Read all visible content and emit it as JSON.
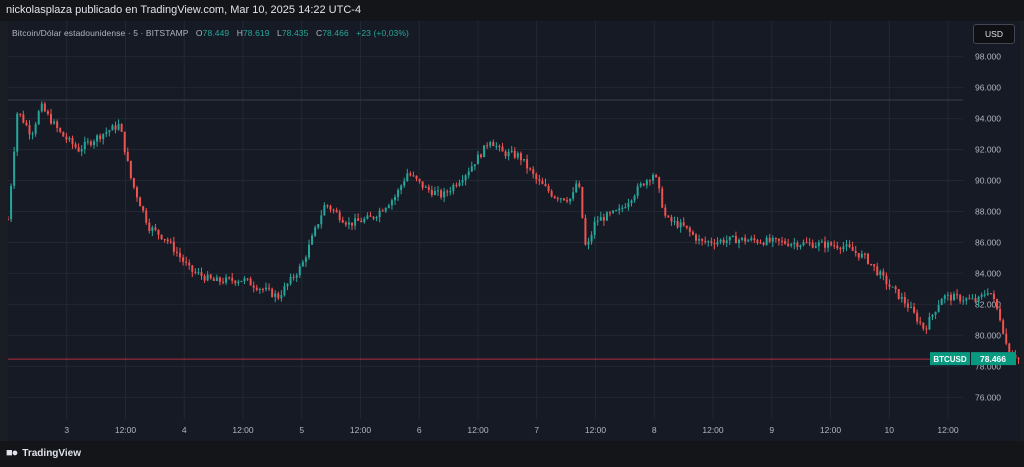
{
  "header": {
    "publish_line": "nickolasplaza publicado en TradingView.com, Mar 10, 2025 14:22 UTC-4"
  },
  "legend": {
    "symbol_title": "Bitcoin/Dólar estadounidense · 5 · BITSTAMP",
    "open_key": "O",
    "open_value": "78.449",
    "high_key": "H",
    "high_value": "78.619",
    "low_key": "L",
    "low_value": "78.435",
    "close_key": "C",
    "close_value": "78.466",
    "change": "+23 (+0,03%)"
  },
  "currency_button": "USD",
  "price_tag": {
    "symbol": "BTCUSD",
    "value": "78.466"
  },
  "footer": {
    "brand": "TradingView"
  },
  "colors": {
    "up": "#26a69a",
    "down": "#ef5350",
    "grid": "#232733",
    "price_line": "#f23645",
    "tag": "#089981"
  },
  "chart_data": {
    "type": "candlestick",
    "symbol": "BTCUSD",
    "interval": "5",
    "exchange": "BITSTAMP",
    "y_ticks": [
      "76.000",
      "78.000",
      "80.000",
      "82.000",
      "84.000",
      "86.000",
      "88.000",
      "90.000",
      "92.000",
      "94.000",
      "96.000",
      "98.000"
    ],
    "ylim": [
      74600,
      100300
    ],
    "x_ticks": [
      "3",
      "12:00",
      "4",
      "12:00",
      "5",
      "12:00",
      "6",
      "12:00",
      "7",
      "12:00",
      "8",
      "12:00",
      "9",
      "12:00",
      "10",
      "12:00"
    ],
    "grid": true,
    "last_close": 78466,
    "series": [
      {
        "x": 0.0,
        "y": 87500
      },
      {
        "x": 0.08,
        "y": 94500
      },
      {
        "x": 0.2,
        "y": 93000
      },
      {
        "x": 0.28,
        "y": 94800
      },
      {
        "x": 0.45,
        "y": 93000
      },
      {
        "x": 0.6,
        "y": 92000
      },
      {
        "x": 0.8,
        "y": 93000
      },
      {
        "x": 0.95,
        "y": 93600
      },
      {
        "x": 1.05,
        "y": 90000
      },
      {
        "x": 1.2,
        "y": 87000
      },
      {
        "x": 1.35,
        "y": 86200
      },
      {
        "x": 1.55,
        "y": 84200
      },
      {
        "x": 1.75,
        "y": 83500
      },
      {
        "x": 2.0,
        "y": 83600
      },
      {
        "x": 2.3,
        "y": 82500
      },
      {
        "x": 2.5,
        "y": 84500
      },
      {
        "x": 2.7,
        "y": 88500
      },
      {
        "x": 2.9,
        "y": 87200
      },
      {
        "x": 3.1,
        "y": 87600
      },
      {
        "x": 3.3,
        "y": 89000
      },
      {
        "x": 3.4,
        "y": 90500
      },
      {
        "x": 3.55,
        "y": 89500
      },
      {
        "x": 3.7,
        "y": 89000
      },
      {
        "x": 3.9,
        "y": 90500
      },
      {
        "x": 4.05,
        "y": 92000
      },
      {
        "x": 4.1,
        "y": 92700
      },
      {
        "x": 4.2,
        "y": 91800
      },
      {
        "x": 4.35,
        "y": 91600
      },
      {
        "x": 4.5,
        "y": 90000
      },
      {
        "x": 4.65,
        "y": 89000
      },
      {
        "x": 4.8,
        "y": 88800
      },
      {
        "x": 4.85,
        "y": 90200
      },
      {
        "x": 4.92,
        "y": 85400
      },
      {
        "x": 5.0,
        "y": 87400
      },
      {
        "x": 5.2,
        "y": 88000
      },
      {
        "x": 5.4,
        "y": 89800
      },
      {
        "x": 5.5,
        "y": 90500
      },
      {
        "x": 5.6,
        "y": 87500
      },
      {
        "x": 5.75,
        "y": 87000
      },
      {
        "x": 5.9,
        "y": 86000
      },
      {
        "x": 6.2,
        "y": 86200
      },
      {
        "x": 6.6,
        "y": 86000
      },
      {
        "x": 7.1,
        "y": 85800
      },
      {
        "x": 7.3,
        "y": 85000
      },
      {
        "x": 7.5,
        "y": 83200
      },
      {
        "x": 7.65,
        "y": 82000
      },
      {
        "x": 7.8,
        "y": 80400
      },
      {
        "x": 7.95,
        "y": 82500
      },
      {
        "x": 8.1,
        "y": 82400
      },
      {
        "x": 8.25,
        "y": 82200
      },
      {
        "x": 8.35,
        "y": 83000
      },
      {
        "x": 8.45,
        "y": 81000
      },
      {
        "x": 8.5,
        "y": 79300
      },
      {
        "x": 8.6,
        "y": 78466
      }
    ]
  }
}
